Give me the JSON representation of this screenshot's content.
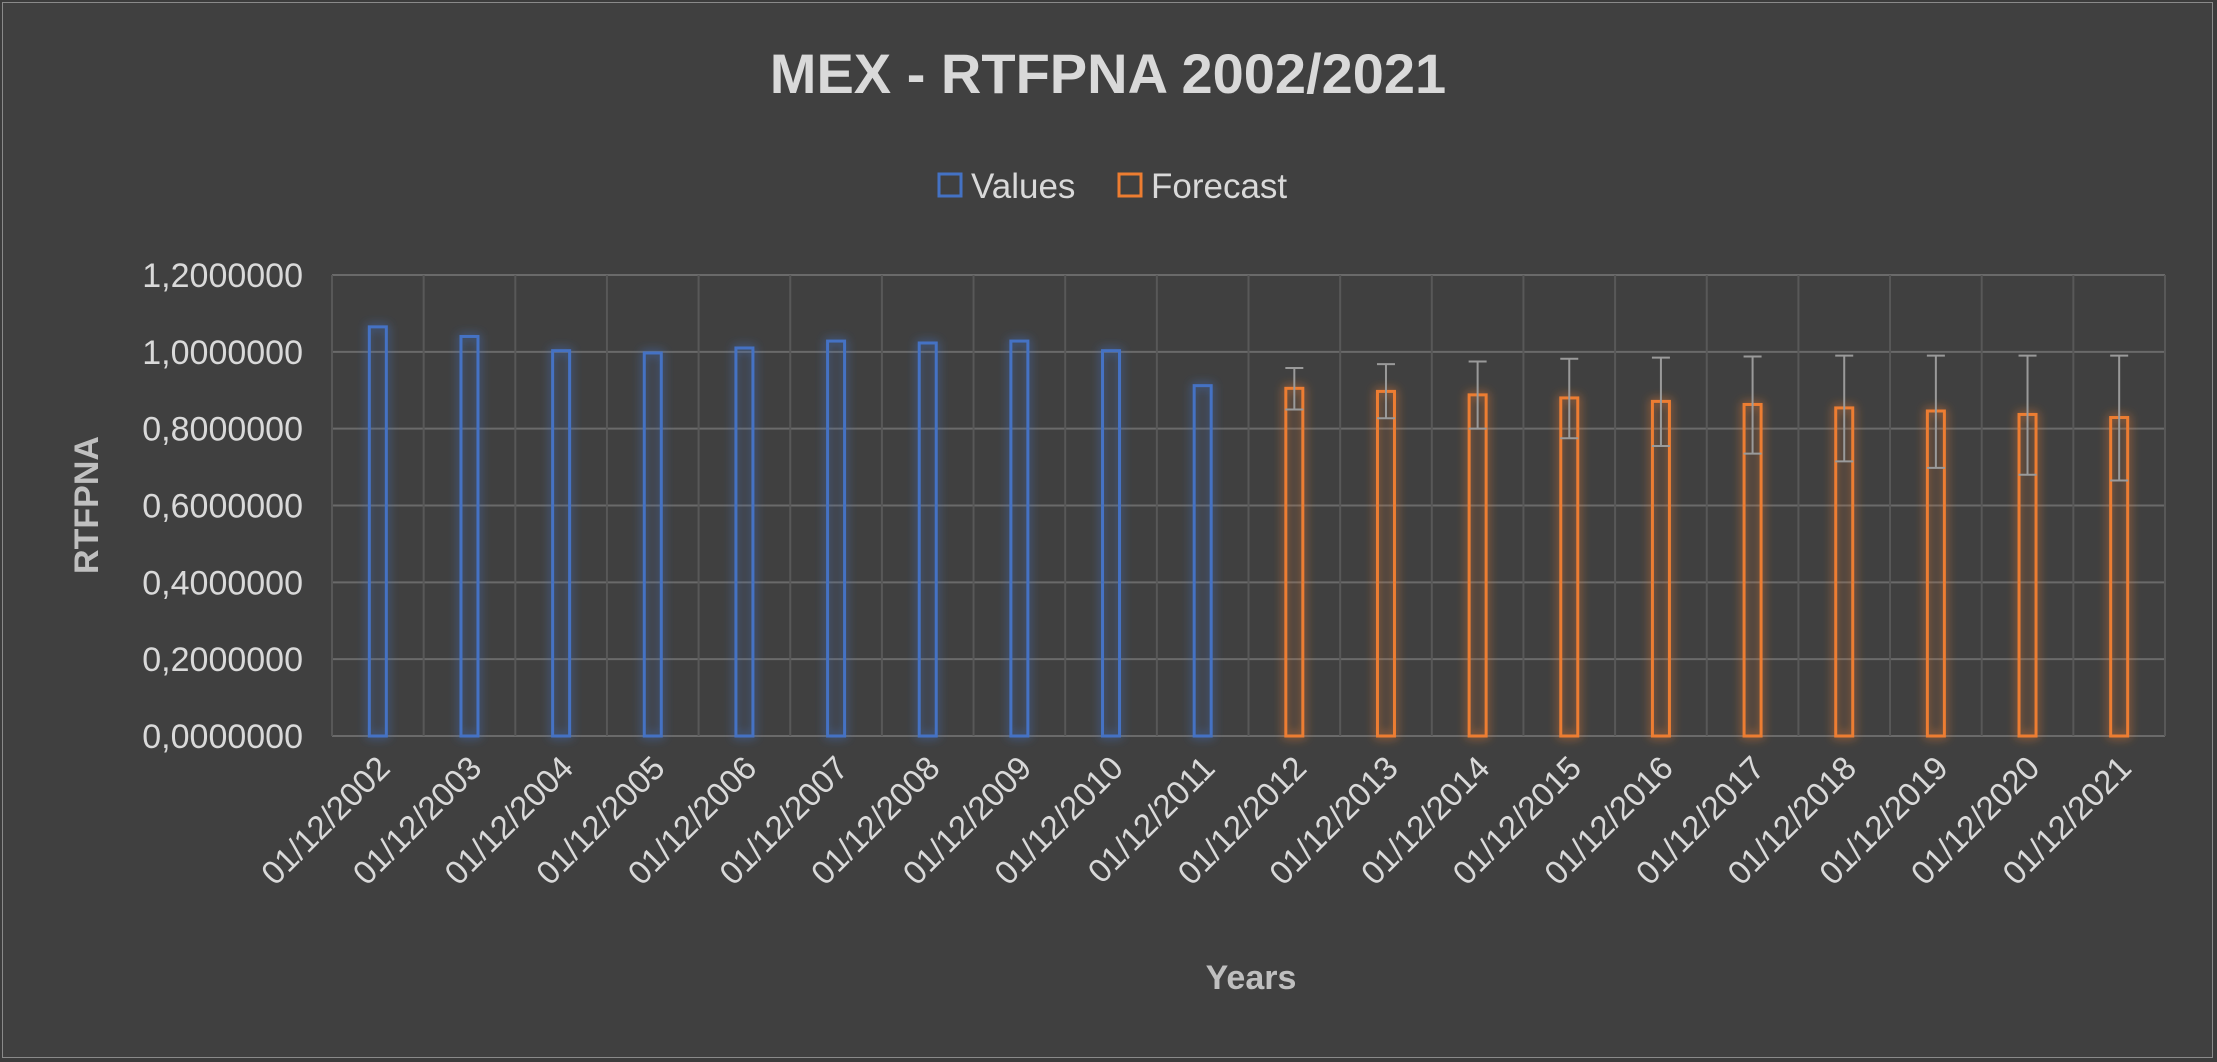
{
  "chart_data": {
    "type": "bar",
    "title": "MEX - RTFPNA 2002/2021",
    "xlabel": "Years",
    "ylabel": "RTFPNA",
    "ylim": [
      0,
      1.2
    ],
    "yticks": [
      "0,0000000",
      "0,2000000",
      "0,4000000",
      "0,6000000",
      "0,8000000",
      "1,0000000",
      "1,2000000"
    ],
    "grid": true,
    "legend_position": "top",
    "categories": [
      "01/12/2002",
      "01/12/2003",
      "01/12/2004",
      "01/12/2005",
      "01/12/2006",
      "01/12/2007",
      "01/12/2008",
      "01/12/2009",
      "01/12/2010",
      "01/12/2011",
      "01/12/2012",
      "01/12/2013",
      "01/12/2014",
      "01/12/2015",
      "01/12/2016",
      "01/12/2017",
      "01/12/2018",
      "01/12/2019",
      "01/12/2020",
      "01/12/2021"
    ],
    "series": [
      {
        "name": "Values",
        "color": "#4472c4",
        "values": [
          1.065,
          1.04,
          1.003,
          0.997,
          1.01,
          1.028,
          1.023,
          1.028,
          1.003,
          0.912,
          null,
          null,
          null,
          null,
          null,
          null,
          null,
          null,
          null,
          null
        ]
      },
      {
        "name": "Forecast",
        "color": "#ed7d31",
        "values": [
          null,
          null,
          null,
          null,
          null,
          null,
          null,
          null,
          null,
          null,
          0.905,
          0.897,
          0.888,
          0.88,
          0.871,
          0.863,
          0.854,
          0.846,
          0.837,
          0.829
        ],
        "error_low": [
          null,
          null,
          null,
          null,
          null,
          null,
          null,
          null,
          null,
          null,
          0.85,
          0.827,
          0.8,
          0.775,
          0.755,
          0.735,
          0.715,
          0.698,
          0.68,
          0.665
        ],
        "error_high": [
          null,
          null,
          null,
          null,
          null,
          null,
          null,
          null,
          null,
          null,
          0.958,
          0.968,
          0.975,
          0.982,
          0.985,
          0.988,
          0.99,
          0.99,
          0.99,
          0.99
        ]
      }
    ]
  }
}
